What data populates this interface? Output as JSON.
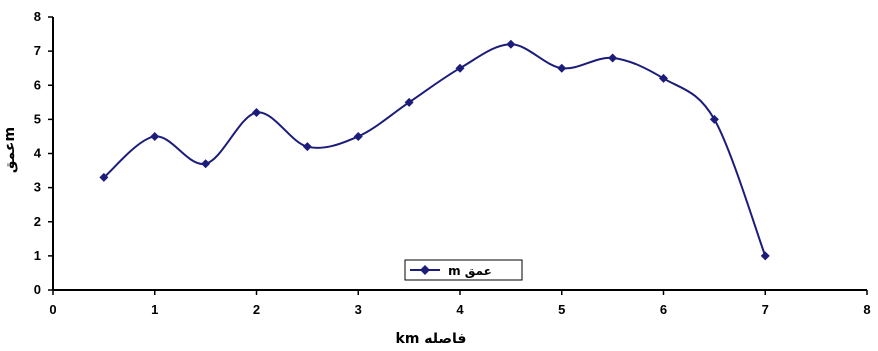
{
  "chart_data": {
    "type": "line",
    "title": "",
    "xlabel": "فاصله km",
    "ylabel": "عمقm",
    "xlim": [
      0,
      8
    ],
    "ylim": [
      0,
      8
    ],
    "x_ticks": [
      "0",
      "1",
      "2",
      "3",
      "4",
      "5",
      "6",
      "7",
      "8"
    ],
    "y_ticks": [
      "0",
      "1",
      "2",
      "3",
      "4",
      "5",
      "6",
      "7",
      "8"
    ],
    "grid": false,
    "legend": {
      "placement": "bottom-center",
      "entries": [
        "عمق m"
      ]
    },
    "series": [
      {
        "name": "عمق m",
        "color": "#1c1c7a",
        "marker": "diamond",
        "smooth": true,
        "x": [
          0.5,
          1.0,
          1.5,
          2.0,
          2.5,
          3.0,
          3.5,
          4.0,
          4.5,
          5.0,
          5.5,
          6.0,
          6.5,
          7.0
        ],
        "y": [
          3.3,
          4.5,
          3.7,
          5.2,
          4.2,
          4.5,
          5.5,
          6.5,
          7.2,
          6.5,
          6.8,
          6.2,
          5.0,
          1.0
        ]
      }
    ]
  }
}
